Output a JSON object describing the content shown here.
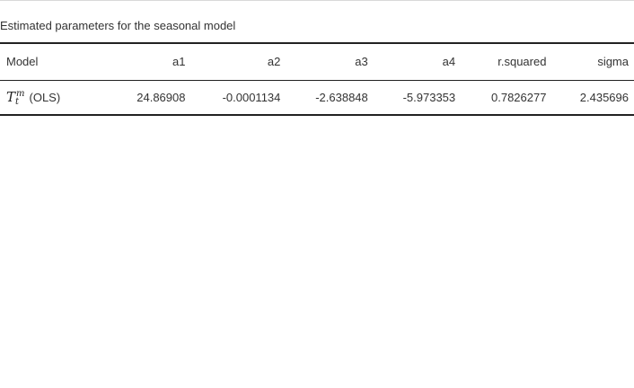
{
  "caption": "Estimated parameters for the seasonal model",
  "table": {
    "columns": [
      "Model",
      "a1",
      "a2",
      "a3",
      "a4",
      "r.squared",
      "sigma"
    ],
    "rows": [
      {
        "model": {
          "symbol": "T",
          "superscript": "m",
          "subscript": "t",
          "method": "(OLS)"
        },
        "a1": "24.86908",
        "a2": "-0.0001134",
        "a3": "-2.638848",
        "a4": "-5.973353",
        "r_squared": "0.7826277",
        "sigma": "2.435696"
      }
    ]
  }
}
